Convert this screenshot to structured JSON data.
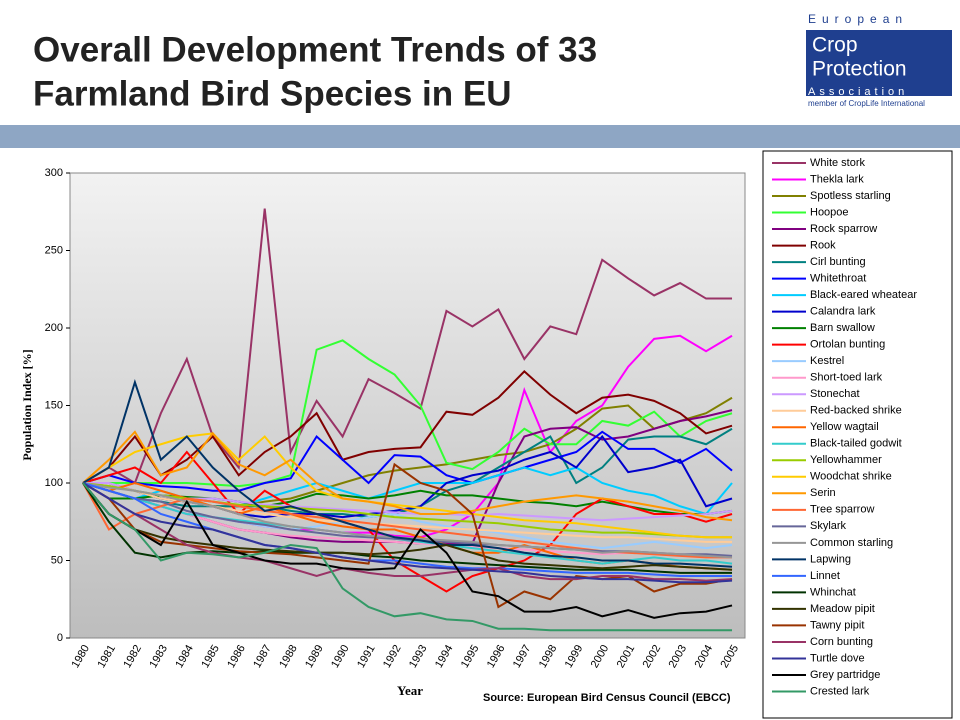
{
  "header": {
    "title_lines": [
      "Overall Development Trends of 33",
      "Farmland Bird Species in EU"
    ],
    "logo": {
      "line1": "European",
      "line2": "Crop",
      "line3": "Protection",
      "line4": "Association",
      "member": "member of CropLife International"
    }
  },
  "chart_data": {
    "type": "line",
    "y_label": "Population Index [%]",
    "x_label": "Year",
    "source": "Source: European Bird Census Council (EBCC)",
    "categories": [
      "1980",
      "1981",
      "1982",
      "1983",
      "1984",
      "1985",
      "1986",
      "1987",
      "1988",
      "1989",
      "1990",
      "1991",
      "1992",
      "1993",
      "1994",
      "1995",
      "1996",
      "1997",
      "1998",
      "1999",
      "2000",
      "2001",
      "2002",
      "2003",
      "2004",
      "2005"
    ],
    "ylim": [
      0,
      300
    ],
    "yticks": [
      0,
      50,
      100,
      150,
      200,
      250,
      300
    ],
    "legend": "right",
    "series": [
      {
        "name": "White stork",
        "color": "#993366",
        "values": [
          100,
          110,
          100,
          145,
          180,
          130,
          110,
          277,
          120,
          153,
          130,
          167,
          158,
          148,
          211,
          201,
          212,
          180,
          201,
          196,
          244,
          232,
          221,
          229,
          219,
          219
        ]
      },
      {
        "name": "Thekla lark",
        "color": "#ff00ff",
        "values": [
          100,
          95,
          90,
          85,
          80,
          78,
          75,
          72,
          70,
          70,
          68,
          68,
          66,
          65,
          70,
          80,
          100,
          160,
          120,
          140,
          150,
          175,
          193,
          195,
          185,
          195
        ]
      },
      {
        "name": "Spotless starling",
        "color": "#808000",
        "values": [
          100,
          100,
          95,
          90,
          88,
          85,
          85,
          88,
          90,
          95,
          100,
          105,
          108,
          110,
          112,
          115,
          118,
          120,
          125,
          135,
          148,
          150,
          135,
          140,
          145,
          155
        ]
      },
      {
        "name": "Hoopoe",
        "color": "#33ff33",
        "values": [
          100,
          100,
          100,
          100,
          100,
          99,
          98,
          100,
          105,
          186,
          192,
          180,
          170,
          150,
          113,
          109,
          120,
          135,
          125,
          125,
          140,
          137,
          146,
          130,
          140,
          145
        ]
      },
      {
        "name": "Rock sparrow",
        "color": "#800080",
        "values": [
          100,
          95,
          90,
          85,
          80,
          75,
          70,
          68,
          65,
          63,
          62,
          62,
          62,
          61,
          61,
          61,
          100,
          130,
          135,
          136,
          128,
          130,
          135,
          140,
          143,
          147
        ]
      },
      {
        "name": "Rook",
        "color": "#800000",
        "values": [
          100,
          110,
          130,
          105,
          115,
          130,
          105,
          120,
          130,
          145,
          115,
          120,
          122,
          123,
          146,
          144,
          155,
          172,
          157,
          145,
          155,
          157,
          153,
          145,
          132,
          137
        ]
      },
      {
        "name": "Cirl bunting",
        "color": "#008080",
        "values": [
          100,
          95,
          90,
          88,
          85,
          85,
          85,
          85,
          82,
          80,
          80,
          78,
          80,
          85,
          95,
          100,
          110,
          120,
          130,
          100,
          110,
          128,
          130,
          130,
          125,
          135
        ]
      },
      {
        "name": "Whitethroat",
        "color": "#0000ff",
        "values": [
          100,
          105,
          100,
          98,
          97,
          95,
          95,
          100,
          103,
          130,
          115,
          100,
          118,
          117,
          105,
          100,
          105,
          110,
          115,
          120,
          133,
          122,
          122,
          113,
          122,
          108
        ]
      },
      {
        "name": "Black-eared wheatear",
        "color": "#00ccff",
        "values": [
          100,
          95,
          90,
          95,
          90,
          88,
          85,
          90,
          95,
          100,
          95,
          90,
          95,
          100,
          100,
          100,
          105,
          110,
          105,
          110,
          100,
          95,
          92,
          85,
          80,
          100
        ]
      },
      {
        "name": "Calandra lark",
        "color": "#0000cc",
        "values": [
          100,
          98,
          95,
          90,
          88,
          85,
          80,
          78,
          80,
          80,
          78,
          80,
          82,
          85,
          100,
          105,
          108,
          115,
          120,
          110,
          130,
          107,
          110,
          115,
          85,
          90
        ]
      },
      {
        "name": "Barn swallow",
        "color": "#008000",
        "values": [
          100,
          90,
          90,
          92,
          91,
          90,
          88,
          85,
          88,
          93,
          92,
          90,
          92,
          95,
          92,
          92,
          90,
          88,
          87,
          85,
          88,
          85,
          82,
          80,
          80,
          82
        ]
      },
      {
        "name": "Ortolan bunting",
        "color": "#ff0000",
        "values": [
          100,
          105,
          110,
          100,
          120,
          100,
          80,
          95,
          85,
          80,
          75,
          70,
          50,
          40,
          30,
          40,
          45,
          50,
          60,
          80,
          90,
          85,
          80,
          80,
          75,
          80
        ]
      },
      {
        "name": "Kestrel",
        "color": "#99ccff",
        "values": [
          100,
          95,
          90,
          85,
          80,
          78,
          75,
          72,
          70,
          72,
          75,
          78,
          80,
          75,
          72,
          70,
          68,
          65,
          62,
          60,
          58,
          60,
          62,
          60,
          58,
          60
        ]
      },
      {
        "name": "Short-toed lark",
        "color": "#ff99cc",
        "values": [
          100,
          95,
          90,
          85,
          80,
          75,
          70,
          68,
          66,
          65,
          64,
          63,
          62,
          61,
          60,
          59,
          58,
          57,
          56,
          55,
          54,
          55,
          55,
          54,
          53,
          52
        ]
      },
      {
        "name": "Stonechat",
        "color": "#cc99ff",
        "values": [
          100,
          100,
          95,
          92,
          90,
          90,
          88,
          86,
          85,
          84,
          83,
          82,
          81,
          80,
          80,
          79,
          80,
          79,
          78,
          77,
          76,
          77,
          78,
          79,
          80,
          82
        ]
      },
      {
        "name": "Red-backed shrike",
        "color": "#ffcc99",
        "values": [
          100,
          98,
          95,
          90,
          88,
          85,
          82,
          80,
          78,
          76,
          75,
          74,
          73,
          72,
          71,
          70,
          69,
          68,
          67,
          66,
          65,
          65,
          64,
          63,
          62,
          62
        ]
      },
      {
        "name": "Yellow wagtail",
        "color": "#ff6600",
        "values": [
          100,
          95,
          100,
          95,
          90,
          85,
          80,
          85,
          80,
          75,
          72,
          70,
          70,
          65,
          60,
          55,
          55,
          60,
          55,
          50,
          48,
          50,
          48,
          46,
          45,
          44
        ]
      },
      {
        "name": "Black-tailed godwit",
        "color": "#33cccc",
        "values": [
          100,
          95,
          90,
          85,
          80,
          78,
          76,
          74,
          72,
          70,
          68,
          66,
          64,
          62,
          60,
          58,
          56,
          54,
          52,
          50,
          48,
          50,
          52,
          50,
          50,
          48
        ]
      },
      {
        "name": "Yellowhammer",
        "color": "#99cc00",
        "values": [
          100,
          98,
          95,
          92,
          90,
          88,
          86,
          85,
          84,
          83,
          82,
          80,
          78,
          77,
          76,
          75,
          74,
          72,
          70,
          69,
          68,
          68,
          67,
          66,
          65,
          65
        ]
      },
      {
        "name": "Woodchat shrike",
        "color": "#ffcc00",
        "values": [
          100,
          110,
          120,
          125,
          130,
          132,
          115,
          130,
          110,
          95,
          90,
          88,
          86,
          84,
          82,
          80,
          78,
          76,
          75,
          74,
          72,
          70,
          68,
          66,
          65,
          65
        ]
      },
      {
        "name": "Serin",
        "color": "#ff9900",
        "values": [
          100,
          115,
          133,
          105,
          110,
          132,
          112,
          105,
          115,
          100,
          90,
          88,
          85,
          80,
          80,
          82,
          85,
          88,
          90,
          92,
          90,
          88,
          85,
          82,
          78,
          76
        ]
      },
      {
        "name": "Tree sparrow",
        "color": "#ff6633",
        "values": [
          100,
          70,
          80,
          85,
          90,
          88,
          85,
          82,
          80,
          78,
          76,
          74,
          72,
          70,
          68,
          66,
          64,
          62,
          60,
          58,
          56,
          55,
          54,
          53,
          52,
          52
        ]
      },
      {
        "name": "Skylark",
        "color": "#666699",
        "values": [
          100,
          95,
          90,
          88,
          82,
          78,
          75,
          73,
          70,
          68,
          66,
          65,
          64,
          63,
          62,
          61,
          60,
          59,
          58,
          57,
          56,
          56,
          55,
          54,
          54,
          53
        ]
      },
      {
        "name": "Common starling",
        "color": "#969696",
        "values": [
          100,
          97,
          95,
          92,
          88,
          85,
          80,
          75,
          72,
          70,
          68,
          66,
          65,
          64,
          63,
          62,
          60,
          59,
          58,
          57,
          55,
          56,
          55,
          54,
          53,
          52
        ]
      },
      {
        "name": "Lapwing",
        "color": "#003366",
        "values": [
          100,
          110,
          165,
          115,
          130,
          110,
          95,
          82,
          85,
          80,
          75,
          70,
          65,
          63,
          60,
          60,
          58,
          55,
          53,
          52,
          50,
          50,
          48,
          48,
          47,
          46
        ]
      },
      {
        "name": "Linnet",
        "color": "#3366ff",
        "values": [
          100,
          95,
          90,
          80,
          75,
          70,
          65,
          60,
          58,
          55,
          52,
          50,
          50,
          48,
          46,
          45,
          45,
          44,
          43,
          42,
          42,
          42,
          41,
          40,
          40,
          40
        ]
      },
      {
        "name": "Whinchat",
        "color": "#003300",
        "values": [
          100,
          75,
          55,
          52,
          55,
          56,
          55,
          56,
          55,
          55,
          55,
          53,
          52,
          50,
          49,
          48,
          47,
          46,
          45,
          44,
          44,
          44,
          43,
          42,
          42,
          42
        ]
      },
      {
        "name": "Meadow pipit",
        "color": "#333300",
        "values": [
          100,
          80,
          70,
          65,
          62,
          60,
          58,
          57,
          56,
          55,
          55,
          54,
          55,
          57,
          60,
          55,
          50,
          48,
          47,
          46,
          45,
          46,
          47,
          46,
          45,
          44
        ]
      },
      {
        "name": "Tawny pipit",
        "color": "#993300",
        "values": [
          100,
          90,
          70,
          62,
          60,
          58,
          56,
          55,
          54,
          52,
          50,
          48,
          112,
          100,
          95,
          80,
          20,
          30,
          25,
          40,
          38,
          40,
          30,
          35,
          35,
          38
        ]
      },
      {
        "name": "Corn bunting",
        "color": "#993366",
        "values": [
          100,
          90,
          80,
          70,
          60,
          55,
          52,
          50,
          45,
          40,
          45,
          42,
          40,
          40,
          42,
          44,
          45,
          40,
          38,
          38,
          40,
          40,
          38,
          38,
          37,
          38
        ]
      },
      {
        "name": "Turtle dove",
        "color": "#333399",
        "values": [
          100,
          90,
          80,
          75,
          72,
          70,
          65,
          60,
          58,
          55,
          52,
          50,
          48,
          46,
          45,
          44,
          43,
          42,
          40,
          39,
          38,
          38,
          37,
          36,
          36,
          37
        ]
      },
      {
        "name": "Grey partridge",
        "color": "#000000",
        "values": [
          100,
          80,
          70,
          60,
          88,
          60,
          55,
          50,
          48,
          48,
          45,
          44,
          45,
          70,
          55,
          30,
          27,
          17,
          17,
          20,
          14,
          18,
          13,
          16,
          17,
          21
        ]
      },
      {
        "name": "Crested lark",
        "color": "#339966",
        "values": [
          100,
          80,
          70,
          50,
          55,
          54,
          52,
          55,
          60,
          58,
          32,
          20,
          14,
          16,
          12,
          11,
          6,
          6,
          5,
          5,
          5,
          5,
          5,
          5,
          5,
          5
        ]
      }
    ]
  }
}
